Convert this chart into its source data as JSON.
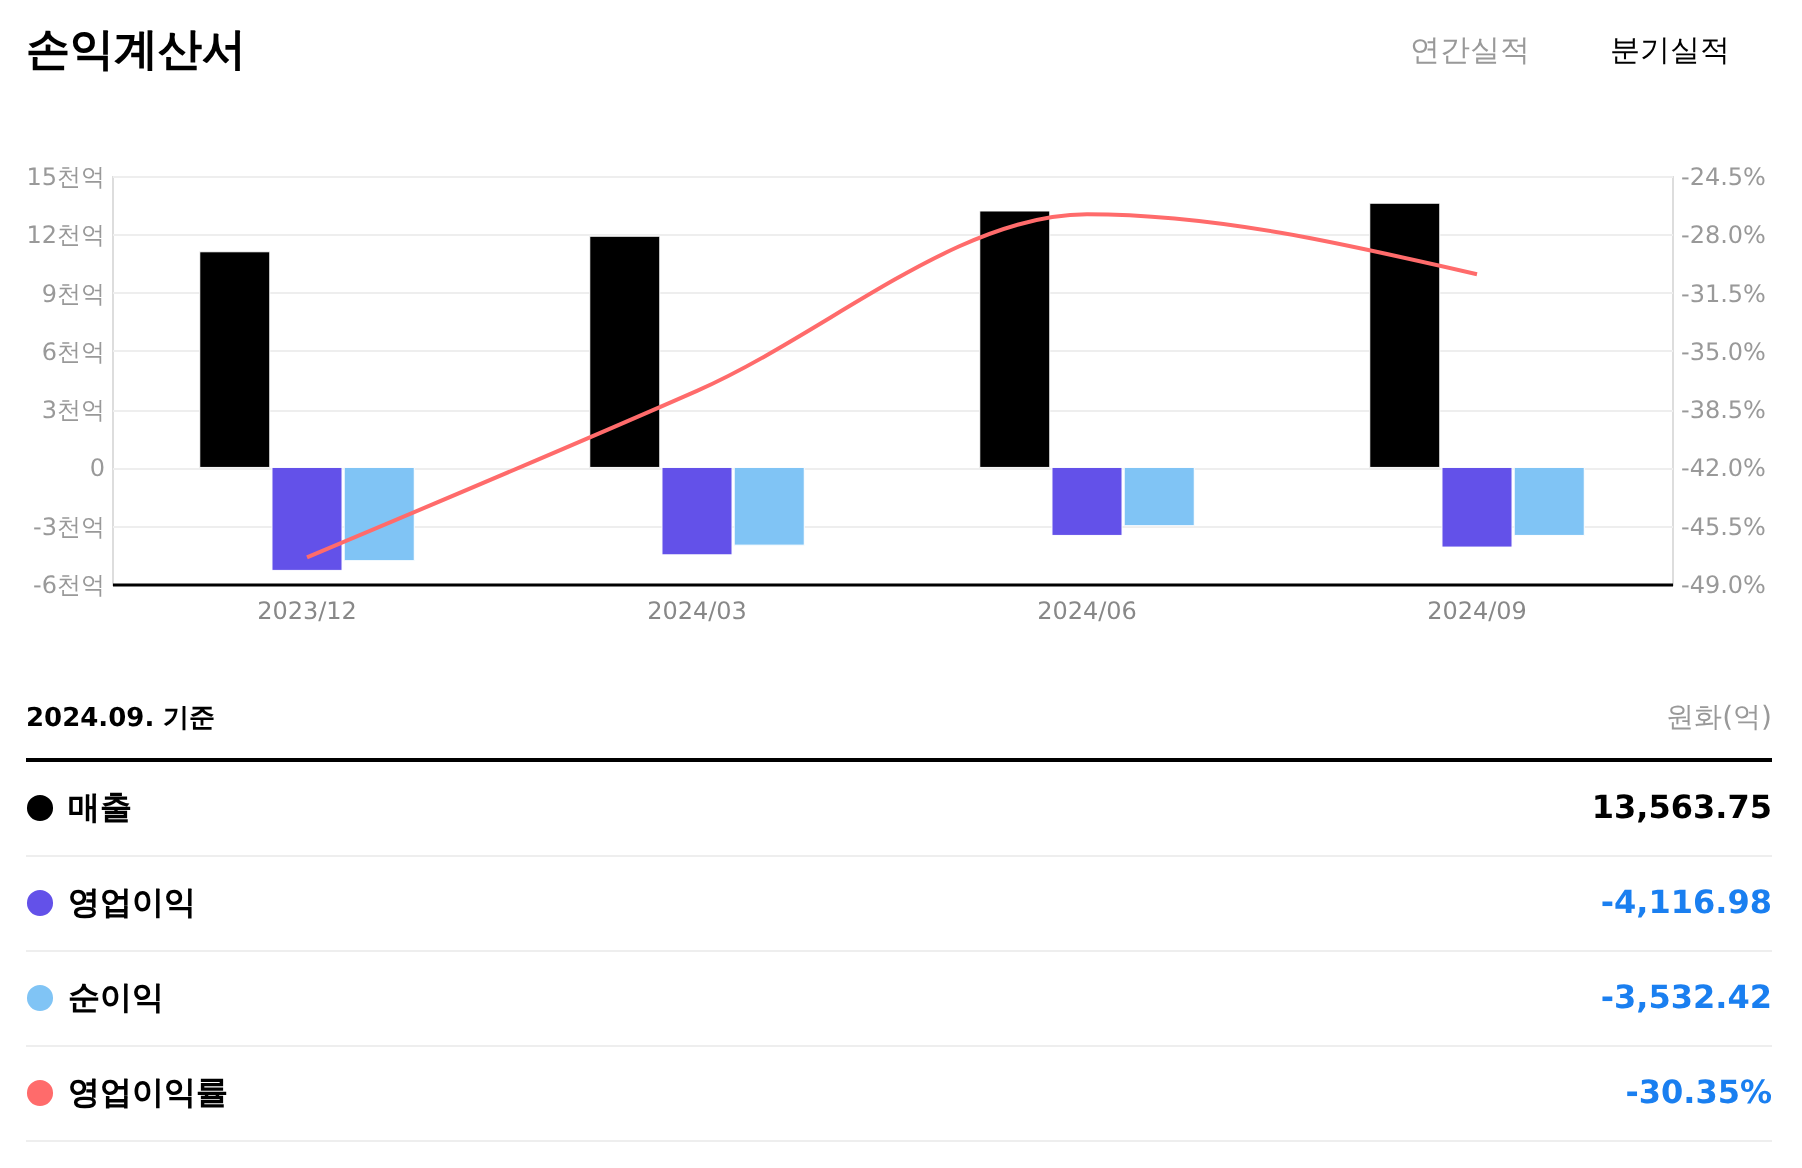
{
  "chart_data": {
    "type": "bar",
    "title": "손익계산서",
    "categories": [
      "2023/12",
      "2024/03",
      "2024/06",
      "2024/09"
    ],
    "series": [
      {
        "name": "매출",
        "color": "#000000",
        "values": [
          11.1,
          11.9,
          13.2,
          13.6
        ]
      },
      {
        "name": "영업이익",
        "color": "#6351e9",
        "values": [
          -5.3,
          -4.5,
          -3.5,
          -4.1
        ]
      },
      {
        "name": "순이익",
        "color": "#80c4f5",
        "values": [
          -4.8,
          -4.0,
          -3.0,
          -3.5
        ]
      },
      {
        "name": "영업이익률",
        "type": "line",
        "axis": "y2",
        "color": "#ff6b6b",
        "values": [
          -47.4,
          -37.4,
          -26.8,
          -30.4
        ]
      }
    ],
    "ylim": [
      -6,
      15
    ],
    "yticks": [
      {
        "value": -6,
        "label": "-6천억"
      },
      {
        "value": -3,
        "label": "-3천억"
      },
      0,
      {
        "value": 3,
        "label": "3천억"
      },
      {
        "value": 6,
        "label": "6천억"
      },
      {
        "value": 9,
        "label": "9천억"
      },
      {
        "value": 12,
        "label": "12천억"
      },
      {
        "value": 15,
        "label": "15천억"
      }
    ],
    "y2lim": [
      -49,
      -24.5
    ],
    "y2ticks": [
      {
        "value": -49,
        "label": "-49.0%"
      },
      {
        "value": -45.5,
        "label": "-45.5%"
      },
      {
        "value": -42,
        "label": "-42.0%"
      },
      {
        "value": -38.5,
        "label": "-38.5%"
      },
      {
        "value": -35,
        "label": "-35.0%"
      },
      {
        "value": -31.5,
        "label": "-31.5%"
      },
      {
        "value": -28,
        "label": "-28.0%"
      },
      {
        "value": -24.5,
        "label": "-24.5%"
      }
    ],
    "grid": "y",
    "legend": "bottom",
    "annotations": [
      "연간실적",
      "분기실적",
      "2024.09. 기준",
      "원화(억)",
      "13,563.75",
      "-4,116.98",
      "-3,532.42",
      "-30.35%"
    ]
  }
}
